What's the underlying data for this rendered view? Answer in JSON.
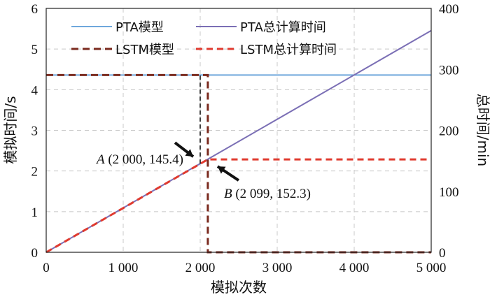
{
  "chart_data": {
    "type": "line",
    "xlabel": "模拟次数",
    "ylabel_left": "模拟时间/s",
    "ylabel_right": "总时间/min",
    "x_range": [
      0,
      5000
    ],
    "y_left_range": [
      0,
      6
    ],
    "y_right_range": [
      0,
      400
    ],
    "x_ticks": [
      "0",
      "1 000",
      "2 000",
      "3 000",
      "4 000",
      "5 000"
    ],
    "y_left_ticks": [
      "0",
      "1",
      "2",
      "3",
      "4",
      "5",
      "6"
    ],
    "y_right_ticks": [
      "0",
      "100",
      "200",
      "300",
      "400"
    ],
    "grid": true,
    "legend_position": "top",
    "series": [
      {
        "name": "PTA模型",
        "axis": "left",
        "color": "#6fa8dc",
        "dash": "solid",
        "points": [
          [
            0,
            4.36
          ],
          [
            5000,
            4.36
          ]
        ]
      },
      {
        "name": "PTA总计算时间",
        "axis": "right",
        "color": "#7b6fb5",
        "dash": "solid",
        "points": [
          [
            0,
            0
          ],
          [
            5000,
            363.5
          ]
        ]
      },
      {
        "name": "LSTM模型",
        "axis": "left",
        "color": "#7a2a1e",
        "dash": "long-dash",
        "points": [
          [
            0,
            4.36
          ],
          [
            2099,
            4.36
          ],
          [
            2099,
            0
          ],
          [
            5000,
            0
          ]
        ]
      },
      {
        "name": "LSTM总计算时间",
        "axis": "right",
        "color": "#e03a2f",
        "dash": "dash",
        "points": [
          [
            0,
            0
          ],
          [
            2099,
            152.3
          ],
          [
            5000,
            152.3
          ]
        ]
      }
    ],
    "guide_line": {
      "color": "#111111",
      "points": [
        [
          2000,
          145.4
        ],
        [
          2000,
          0
        ]
      ]
    },
    "annotations": [
      {
        "letter": "A",
        "text": " (2 000, 145.4)",
        "x": 2000,
        "y": 145.4
      },
      {
        "letter": "B",
        "text": " (2 099, 152.3)",
        "x": 2099,
        "y": 152.3
      }
    ]
  }
}
